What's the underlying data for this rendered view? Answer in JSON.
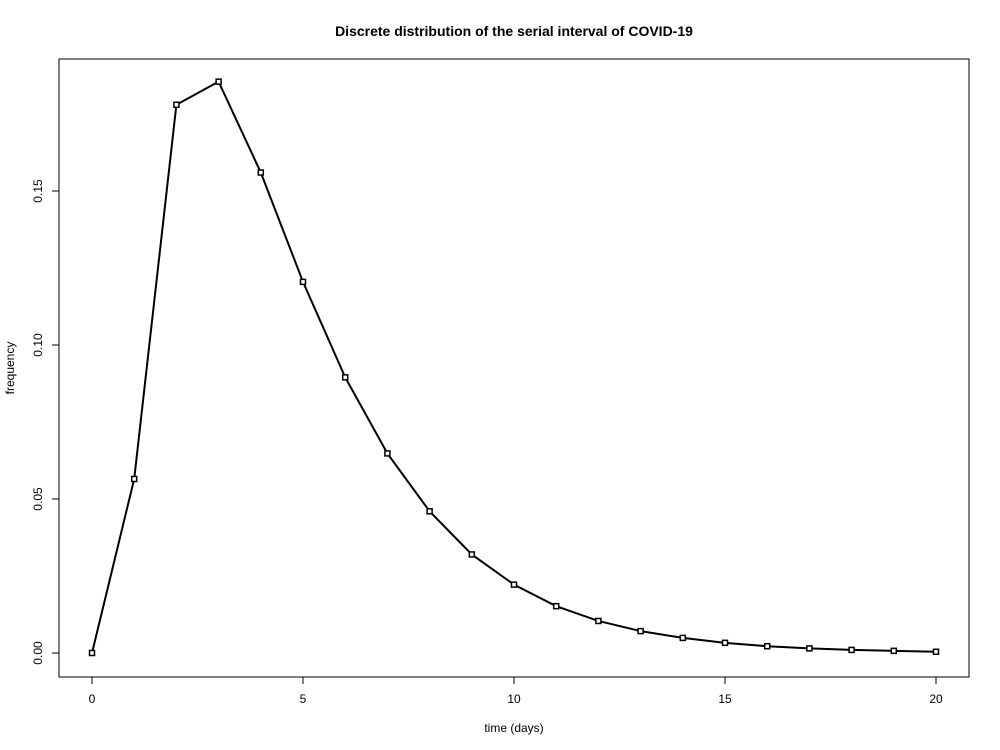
{
  "chart_data": {
    "type": "line",
    "title": "Discrete distribution of the serial interval of COVID-19",
    "xlabel": "time (days)",
    "ylabel": "frequency",
    "xlim": [
      0,
      20
    ],
    "ylim": [
      0,
      0.185
    ],
    "grid": false,
    "x_ticks": [
      0,
      5,
      10,
      15,
      20
    ],
    "x_tick_labels": [
      "0",
      "5",
      "10",
      "15",
      "20"
    ],
    "y_ticks": [
      0,
      0.05,
      0.1,
      0.15
    ],
    "y_tick_labels": [
      "0.00",
      "0.05",
      "0.10",
      "0.15"
    ],
    "x": [
      0,
      1,
      2,
      3,
      4,
      5,
      6,
      7,
      8,
      9,
      10,
      11,
      12,
      13,
      14,
      15,
      16,
      17,
      18,
      19,
      20
    ],
    "series": [
      {
        "values": [
          0.0,
          0.0565,
          0.178,
          0.1855,
          0.156,
          0.1205,
          0.0895,
          0.0648,
          0.046,
          0.032,
          0.0222,
          0.0152,
          0.0104,
          0.0071,
          0.0049,
          0.0033,
          0.0022,
          0.0015,
          0.001,
          0.0007,
          0.0004
        ]
      }
    ]
  }
}
